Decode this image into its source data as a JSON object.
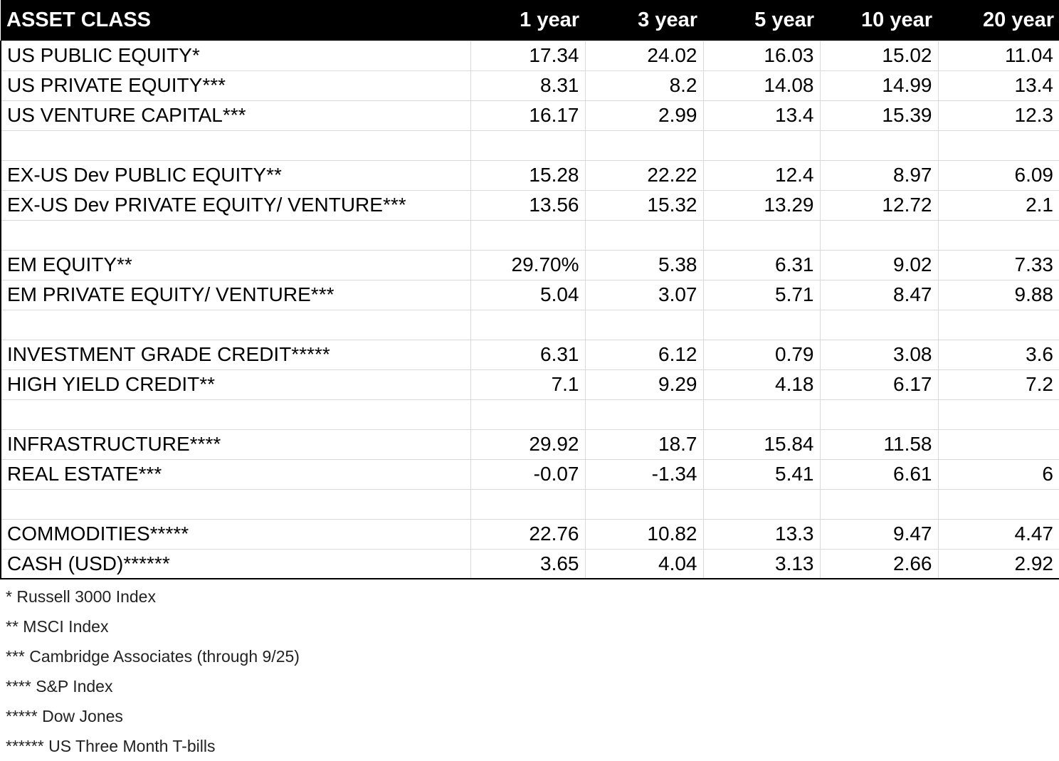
{
  "table": {
    "headers": [
      "ASSET CLASS",
      "1 year",
      "3 year",
      "5 year",
      "10 year",
      "20 year"
    ],
    "rows": [
      {
        "label": "US PUBLIC EQUITY*",
        "values": [
          "17.34",
          "24.02",
          "16.03",
          "15.02",
          "11.04"
        ]
      },
      {
        "label": "US PRIVATE EQUITY***",
        "values": [
          "8.31",
          "8.2",
          "14.08",
          "14.99",
          "13.4"
        ]
      },
      {
        "label": "US VENTURE CAPITAL***",
        "values": [
          "16.17",
          "2.99",
          "13.4",
          "15.39",
          "12.3"
        ]
      },
      {
        "label": "",
        "values": [
          "",
          "",
          "",
          "",
          ""
        ]
      },
      {
        "label": "EX-US Dev PUBLIC EQUITY**",
        "values": [
          "15.28",
          "22.22",
          "12.4",
          "8.97",
          "6.09"
        ]
      },
      {
        "label": "EX-US Dev PRIVATE EQUITY/ VENTURE***",
        "values": [
          "13.56",
          "15.32",
          "13.29",
          "12.72",
          "2.1"
        ]
      },
      {
        "label": "",
        "values": [
          "",
          "",
          "",
          "",
          ""
        ]
      },
      {
        "label": "EM EQUITY**",
        "values": [
          "29.70%",
          "5.38",
          "6.31",
          "9.02",
          "7.33"
        ]
      },
      {
        "label": "EM PRIVATE EQUITY/ VENTURE***",
        "values": [
          "5.04",
          "3.07",
          "5.71",
          "8.47",
          "9.88"
        ]
      },
      {
        "label": "",
        "values": [
          "",
          "",
          "",
          "",
          ""
        ]
      },
      {
        "label": "INVESTMENT GRADE CREDIT*****",
        "values": [
          "6.31",
          "6.12",
          "0.79",
          "3.08",
          "3.6"
        ]
      },
      {
        "label": "HIGH YIELD CREDIT**",
        "values": [
          "7.1",
          "9.29",
          "4.18",
          "6.17",
          "7.2"
        ]
      },
      {
        "label": "",
        "values": [
          "",
          "",
          "",
          "",
          ""
        ]
      },
      {
        "label": "INFRASTRUCTURE****",
        "values": [
          "29.92",
          "18.7",
          "15.84",
          "11.58",
          ""
        ]
      },
      {
        "label": "REAL ESTATE***",
        "values": [
          "-0.07",
          "-1.34",
          "5.41",
          "6.61",
          "6"
        ]
      },
      {
        "label": "",
        "values": [
          "",
          "",
          "",
          "",
          ""
        ]
      },
      {
        "label": "COMMODITIES*****",
        "values": [
          "22.76",
          "10.82",
          "13.3",
          "9.47",
          "4.47"
        ]
      },
      {
        "label": "CASH (USD)******",
        "values": [
          "3.65",
          "4.04",
          "3.13",
          "2.66",
          "2.92"
        ]
      }
    ]
  },
  "footnotes": [
    "* Russell 3000 Index",
    "** MSCI Index",
    "*** Cambridge Associates (through 9/25)",
    "**** S&P Index",
    "***** Dow Jones",
    "****** US Three Month T-bills"
  ]
}
